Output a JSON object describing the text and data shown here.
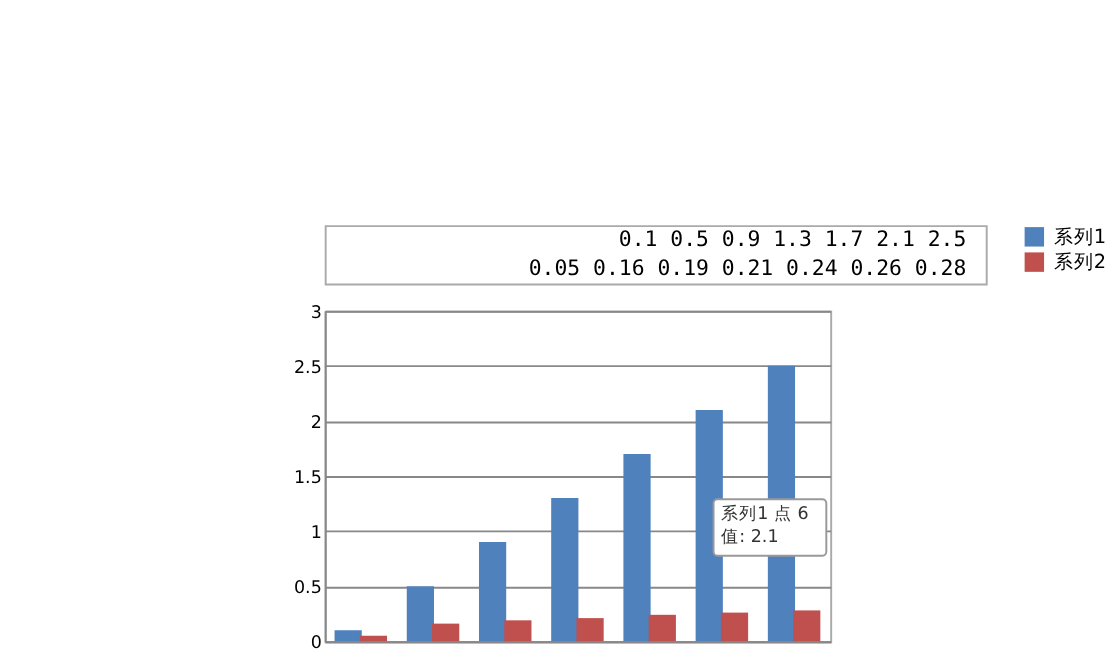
{
  "chart_data": [
    {
      "type": "bar",
      "categories": [
        null,
        null,
        null,
        null,
        null,
        null,
        null
      ],
      "series": [
        {
          "name": "系列1",
          "color": "#4f81bd",
          "values": [
            0.1,
            0.5,
            0.9,
            1.3,
            1.7,
            2.1,
            2.5
          ]
        },
        {
          "name": "系列2",
          "color": "#c0504d",
          "values": [
            0.05,
            0.16,
            0.19,
            0.21,
            0.24,
            0.26,
            0.28
          ]
        }
      ],
      "ylim": [
        0,
        3
      ],
      "yticks": [
        0,
        0.5,
        1,
        1.5,
        2,
        2.5,
        3
      ],
      "grid": "y",
      "legend": "right",
      "annotations": [
        "系列1 点 6\n值: 2.1"
      ]
    },
    {
      "type": "other",
      "annotations": [
        "0.1 0.5 0.9 1.3 1.7 2.1 2.5",
        "0.05 0.16 0.19 0.21 0.24 0.26 0.28"
      ]
    }
  ]
}
